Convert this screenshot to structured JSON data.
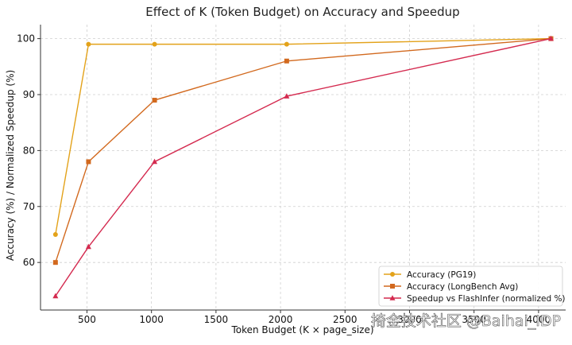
{
  "chart_data": {
    "type": "line",
    "title": "Effect of K (Token Budget) on Accuracy and Speedup",
    "xlabel": "Token Budget (K × page_size)",
    "ylabel": "Accuracy (%) / Normalized Speedup (%)",
    "xlim": [
      140,
      4210
    ],
    "ylim": [
      51.5,
      102.5
    ],
    "xticks": [
      500,
      1000,
      1500,
      2000,
      2500,
      3000,
      3500,
      4000
    ],
    "yticks": [
      60,
      70,
      80,
      90,
      100
    ],
    "grid": true,
    "legend_position": "bottom-right",
    "x": [
      256,
      512,
      1024,
      2048,
      4096
    ],
    "series": [
      {
        "name": "Accuracy (PG19)",
        "color": "#e3a21a",
        "marker": "circle",
        "values": [
          65,
          99,
          99,
          99,
          100
        ]
      },
      {
        "name": "Accuracy (LongBench Avg)",
        "color": "#d2691e",
        "marker": "square",
        "values": [
          60,
          78,
          89,
          96,
          100
        ]
      },
      {
        "name": "Speedup vs FlashInfer (normalized %)",
        "color": "#d42a4f",
        "marker": "triangle",
        "values": [
          54,
          62.8,
          78,
          89.7,
          100
        ]
      }
    ]
  },
  "watermark": "掎金技术社区 @Baihai_IDP"
}
